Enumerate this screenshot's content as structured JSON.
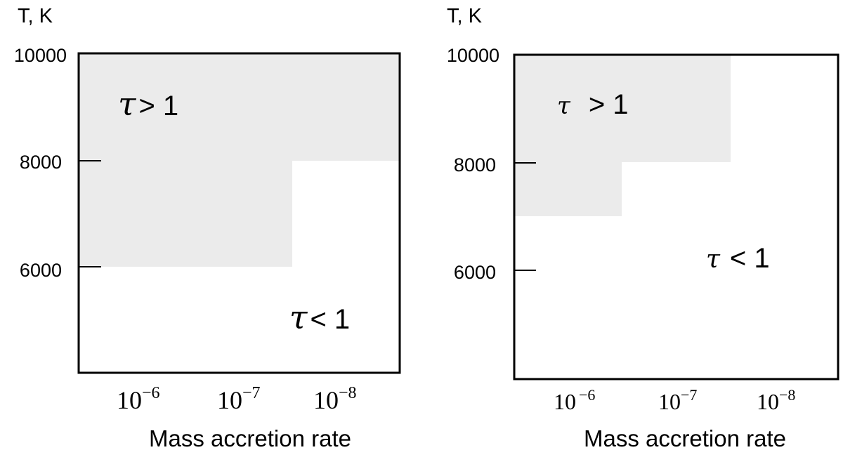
{
  "chart_data": [
    {
      "type": "region",
      "ylabel": "T, K",
      "xlabel": "Mass accretion rate",
      "y_ticks": [
        "10000",
        "8000",
        "6000"
      ],
      "x_ticks": [
        {
          "base": "10",
          "exp": "−6"
        },
        {
          "base": "10",
          "exp": "−7"
        },
        {
          "base": "10",
          "exp": "−8"
        }
      ],
      "regions": [
        {
          "label_symbol": "τ",
          "label_rest": "> 1",
          "fill": "#ebebeb"
        },
        {
          "label_symbol": "τ",
          "label_rest": "< 1",
          "fill": "#ffffff"
        }
      ]
    },
    {
      "type": "region",
      "ylabel": "T, K",
      "xlabel": "Mass accretion rate",
      "y_ticks": [
        "10000",
        "8000",
        "6000"
      ],
      "x_ticks": [
        {
          "base": "10",
          "exp": "−6"
        },
        {
          "base": "10",
          "exp": "−7"
        },
        {
          "base": "10",
          "exp": "−8"
        }
      ],
      "regions": [
        {
          "label_symbol": "τ",
          "label_rest": "> 1",
          "fill": "#ebebeb"
        },
        {
          "label_symbol": "τ",
          "label_rest": "< 1",
          "fill": "#ffffff"
        }
      ]
    }
  ]
}
